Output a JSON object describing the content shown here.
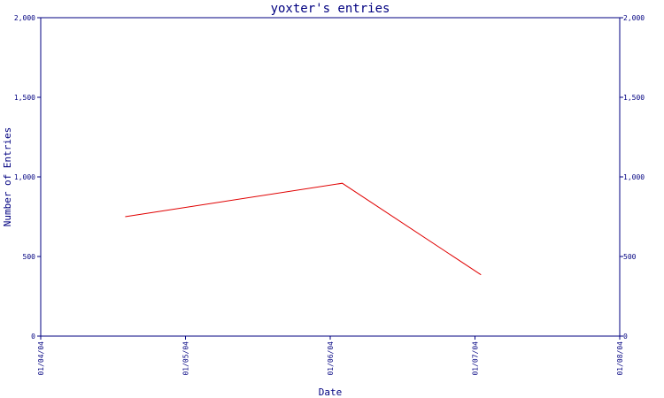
{
  "chart_data": {
    "type": "line",
    "title": "yoxter's entries",
    "xlabel": "Date",
    "ylabel": "Number of Entries",
    "x_ticks": [
      "01/04/04",
      "01/05/04",
      "01/06/04",
      "01/07/04",
      "01/08/04"
    ],
    "xlim": [
      "2004-01-04",
      "2004-01-08"
    ],
    "ylim": [
      0,
      2000
    ],
    "y_ticks": [
      0,
      500,
      1000,
      1500,
      2000
    ],
    "y_tick_labels": [
      "0",
      "500",
      "1,000",
      "1,500",
      "2,000"
    ],
    "grid": false,
    "series": [
      {
        "x": [
          "2004-01-04T14:00",
          "2004-01-06T02:00",
          "2004-01-07T01:00"
        ],
        "values": [
          750,
          960,
          385
        ]
      }
    ],
    "colors": {
      "axis": "#000080",
      "line": "#e00000",
      "text": "#000080"
    }
  }
}
